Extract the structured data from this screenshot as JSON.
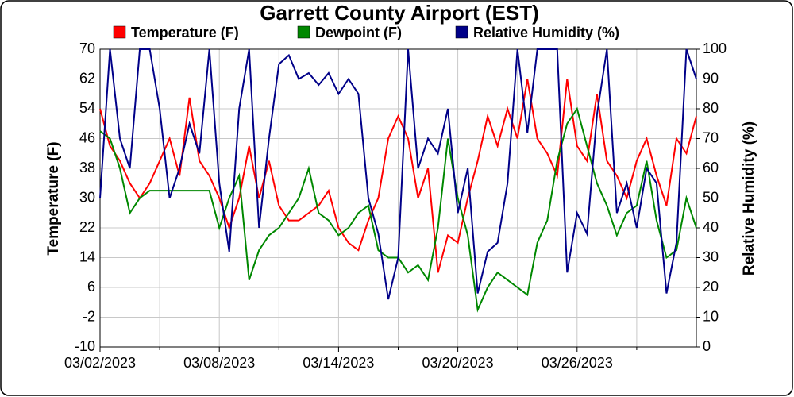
{
  "chart_data": {
    "type": "line",
    "title": "Garrett County Airport (EST)",
    "y_label": "Temperature (F)",
    "y2_label": "Relative Humidity (%)",
    "x": [
      0,
      0.5,
      1,
      1.5,
      2,
      2.5,
      3,
      3.5,
      4,
      4.5,
      5,
      5.5,
      6,
      6.5,
      7,
      7.5,
      8,
      8.5,
      9,
      9.5,
      10,
      10.5,
      11,
      11.5,
      12,
      12.5,
      13,
      13.5,
      14,
      14.5,
      15,
      15.5,
      16,
      16.5,
      17,
      17.5,
      18,
      18.5,
      19,
      19.5,
      20,
      20.5,
      21,
      21.5,
      22,
      22.5,
      23,
      23.5,
      24,
      24.5,
      25,
      25.5,
      26,
      26.5,
      27,
      27.5,
      28,
      28.5,
      29,
      29.5,
      30
    ],
    "series": [
      {
        "name": "Temperature (F)",
        "color": "#ff0000",
        "axis": "y",
        "values": [
          54,
          44,
          40,
          34,
          30,
          34,
          40,
          46,
          36,
          57,
          40,
          36,
          30,
          22,
          30,
          44,
          30,
          40,
          28,
          24,
          24,
          26,
          28,
          32,
          22,
          18,
          16,
          24,
          30,
          46,
          52,
          46,
          30,
          38,
          10,
          20,
          18,
          30,
          40,
          52,
          44,
          54,
          46,
          62,
          46,
          42,
          36,
          62,
          44,
          40,
          58,
          40,
          36,
          30,
          40,
          46,
          36,
          28,
          46,
          42,
          52
        ]
      },
      {
        "name": "Dewpoint (F)",
        "color": "#008800",
        "axis": "y",
        "values": [
          48,
          46,
          38,
          26,
          30,
          32,
          32,
          32,
          32,
          32,
          32,
          32,
          22,
          30,
          36,
          8,
          16,
          20,
          22,
          26,
          30,
          38,
          26,
          24,
          20,
          22,
          26,
          28,
          16,
          14,
          14,
          10,
          12,
          8,
          22,
          46,
          30,
          20,
          0,
          6,
          10,
          8,
          6,
          4,
          18,
          24,
          40,
          50,
          54,
          44,
          34,
          28,
          20,
          26,
          28,
          40,
          24,
          14,
          16,
          30,
          22
        ]
      },
      {
        "name": "Relative Humidity (%)",
        "color": "#000088",
        "axis": "y2",
        "values": [
          50,
          100,
          70,
          60,
          100,
          100,
          80,
          50,
          60,
          75,
          65,
          100,
          55,
          32,
          80,
          100,
          40,
          70,
          95,
          98,
          90,
          92,
          88,
          92,
          85,
          90,
          85,
          50,
          38,
          16,
          30,
          100,
          60,
          70,
          65,
          80,
          45,
          60,
          18,
          32,
          35,
          55,
          100,
          72,
          100,
          100,
          100,
          25,
          45,
          38,
          78,
          100,
          45,
          55,
          40,
          60,
          55,
          18,
          35,
          100,
          90
        ]
      }
    ],
    "xlim": [
      0,
      30
    ],
    "xticks": [
      {
        "value": 0,
        "label": "03/02/2023"
      },
      {
        "value": 6,
        "label": "03/08/2023"
      },
      {
        "value": 12,
        "label": "03/14/2023"
      },
      {
        "value": 18,
        "label": "03/20/2023"
      },
      {
        "value": 24,
        "label": "03/26/2023"
      }
    ],
    "xminor_ticks": [
      3,
      9,
      15,
      21,
      27
    ],
    "ylim": [
      -10,
      70
    ],
    "yticks": [
      -10,
      -2,
      6,
      14,
      22,
      30,
      38,
      46,
      54,
      62,
      70
    ],
    "y2lim": [
      0,
      100
    ],
    "y2ticks": [
      0,
      10,
      20,
      30,
      40,
      50,
      60,
      70,
      80,
      90,
      100
    ],
    "grid": true
  }
}
